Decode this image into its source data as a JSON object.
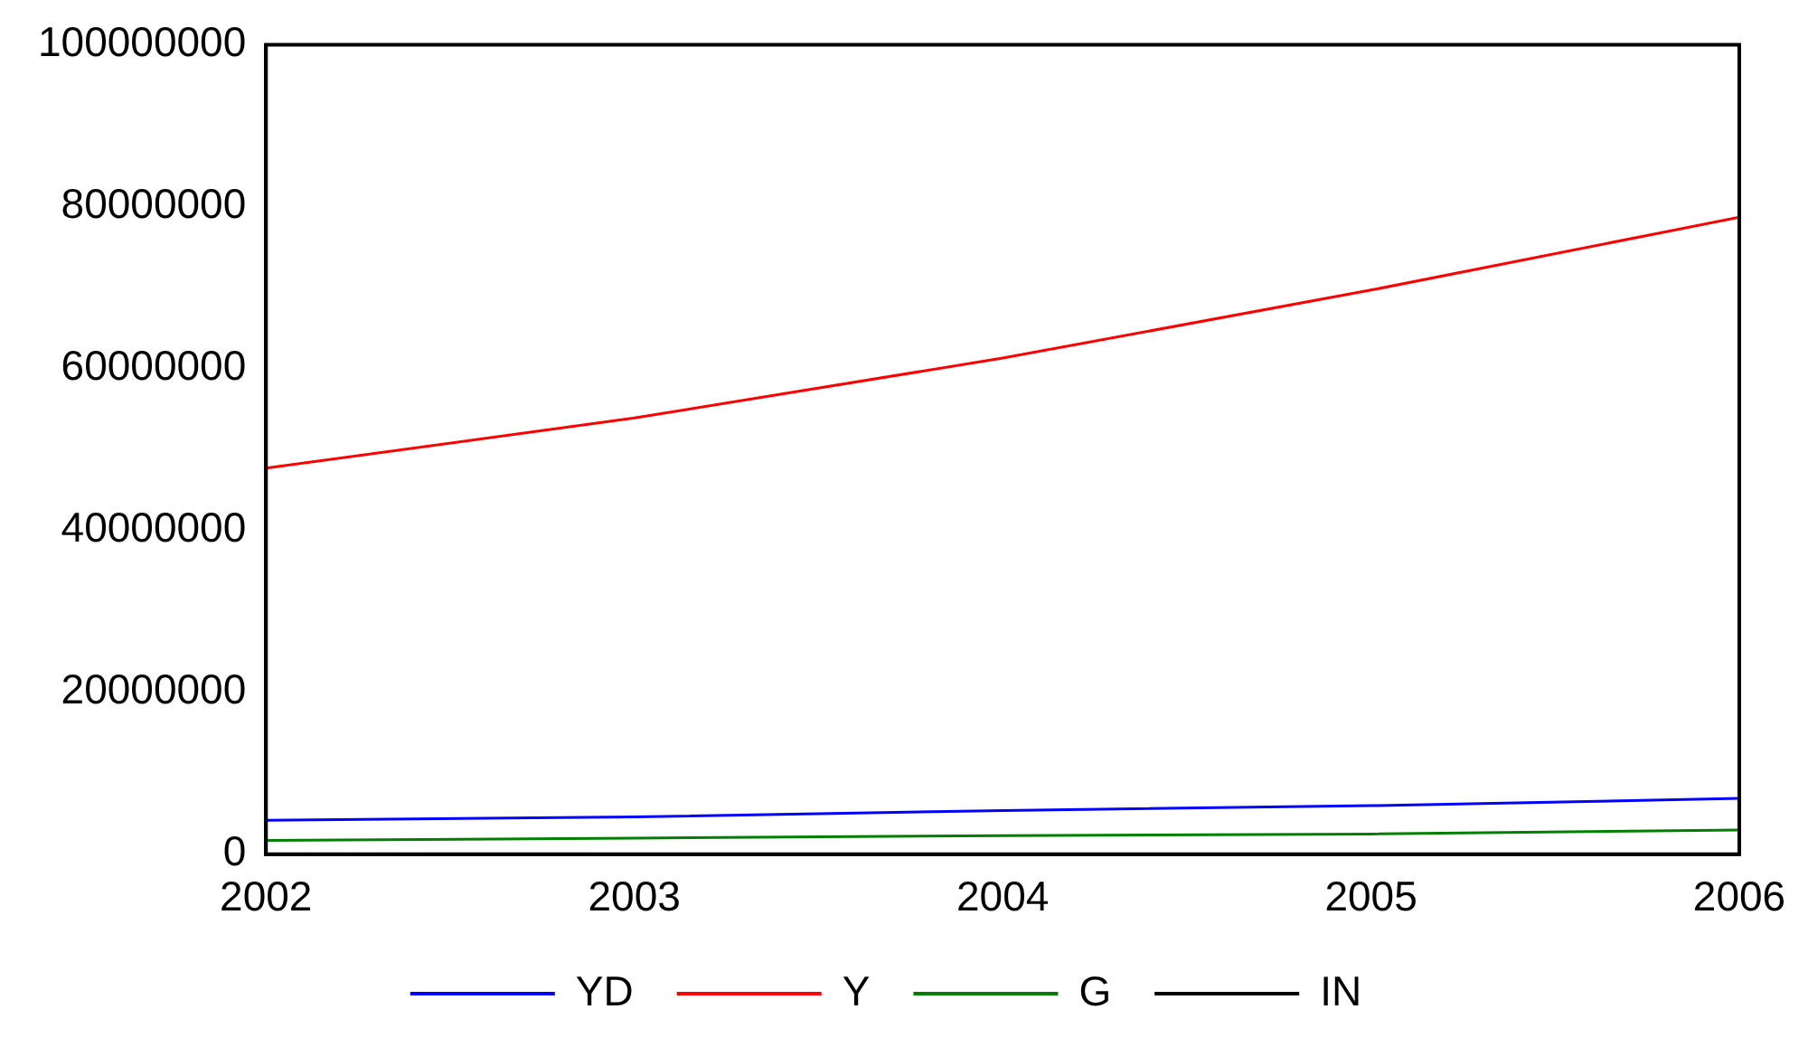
{
  "chart_data": {
    "type": "line",
    "x": [
      2002,
      2003,
      2004,
      2005,
      2006
    ],
    "xlim": [
      2002,
      2006
    ],
    "xticks": [
      2002,
      2003,
      2004,
      2005,
      2006
    ],
    "ylim": [
      0,
      100000000
    ],
    "yticks": [
      0,
      20000000,
      40000000,
      60000000,
      80000000,
      100000000
    ],
    "grid": false,
    "legend": "bottom",
    "marker": "none",
    "line_style": "solid",
    "series": [
      {
        "name": "YD",
        "color": "#0000ff",
        "values": [
          4200000,
          4600000,
          5400000,
          6000000,
          6900000
        ]
      },
      {
        "name": "Y",
        "color": "#ff0000",
        "values": [
          47700000,
          53900000,
          61300000,
          69700000,
          78700000
        ]
      },
      {
        "name": "G",
        "color": "#008000",
        "values": [
          1700000,
          2000000,
          2300000,
          2500000,
          3000000
        ]
      },
      {
        "name": "IN",
        "color": "#000000",
        "values": [
          null,
          null,
          null,
          null,
          null
        ]
      }
    ]
  }
}
